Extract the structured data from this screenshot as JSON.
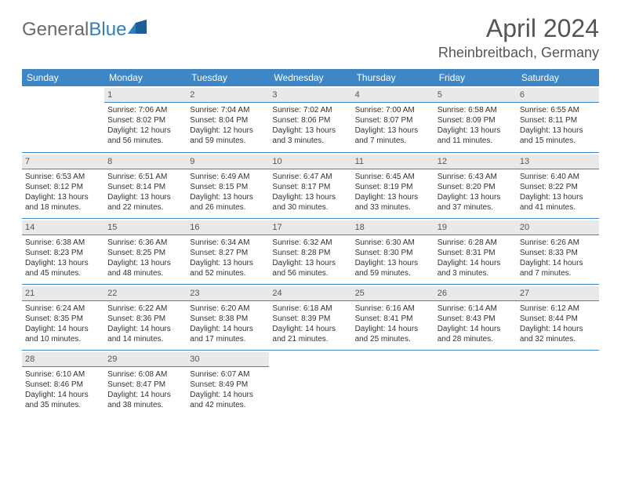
{
  "brand": {
    "part1": "General",
    "part2": "Blue"
  },
  "title": "April 2024",
  "location": "Rheinbreitbach, Germany",
  "colors": {
    "header_bg": "#3d87c7",
    "header_text": "#ffffff",
    "daynum_bg": "#e9e9e9",
    "rule": "#3d87c7",
    "text": "#333333",
    "title_text": "#555555",
    "brand_gray": "#6a6a6a",
    "brand_blue": "#2f7fc1",
    "page_bg": "#ffffff"
  },
  "weekdays": [
    "Sunday",
    "Monday",
    "Tuesday",
    "Wednesday",
    "Thursday",
    "Friday",
    "Saturday"
  ],
  "weeks": [
    [
      {
        "n": "",
        "lines": [
          "",
          "",
          "",
          ""
        ]
      },
      {
        "n": "1",
        "lines": [
          "Sunrise: 7:06 AM",
          "Sunset: 8:02 PM",
          "Daylight: 12 hours",
          "and 56 minutes."
        ]
      },
      {
        "n": "2",
        "lines": [
          "Sunrise: 7:04 AM",
          "Sunset: 8:04 PM",
          "Daylight: 12 hours",
          "and 59 minutes."
        ]
      },
      {
        "n": "3",
        "lines": [
          "Sunrise: 7:02 AM",
          "Sunset: 8:06 PM",
          "Daylight: 13 hours",
          "and 3 minutes."
        ]
      },
      {
        "n": "4",
        "lines": [
          "Sunrise: 7:00 AM",
          "Sunset: 8:07 PM",
          "Daylight: 13 hours",
          "and 7 minutes."
        ]
      },
      {
        "n": "5",
        "lines": [
          "Sunrise: 6:58 AM",
          "Sunset: 8:09 PM",
          "Daylight: 13 hours",
          "and 11 minutes."
        ]
      },
      {
        "n": "6",
        "lines": [
          "Sunrise: 6:55 AM",
          "Sunset: 8:11 PM",
          "Daylight: 13 hours",
          "and 15 minutes."
        ]
      }
    ],
    [
      {
        "n": "7",
        "lines": [
          "Sunrise: 6:53 AM",
          "Sunset: 8:12 PM",
          "Daylight: 13 hours",
          "and 18 minutes."
        ]
      },
      {
        "n": "8",
        "lines": [
          "Sunrise: 6:51 AM",
          "Sunset: 8:14 PM",
          "Daylight: 13 hours",
          "and 22 minutes."
        ]
      },
      {
        "n": "9",
        "lines": [
          "Sunrise: 6:49 AM",
          "Sunset: 8:15 PM",
          "Daylight: 13 hours",
          "and 26 minutes."
        ]
      },
      {
        "n": "10",
        "lines": [
          "Sunrise: 6:47 AM",
          "Sunset: 8:17 PM",
          "Daylight: 13 hours",
          "and 30 minutes."
        ]
      },
      {
        "n": "11",
        "lines": [
          "Sunrise: 6:45 AM",
          "Sunset: 8:19 PM",
          "Daylight: 13 hours",
          "and 33 minutes."
        ]
      },
      {
        "n": "12",
        "lines": [
          "Sunrise: 6:43 AM",
          "Sunset: 8:20 PM",
          "Daylight: 13 hours",
          "and 37 minutes."
        ]
      },
      {
        "n": "13",
        "lines": [
          "Sunrise: 6:40 AM",
          "Sunset: 8:22 PM",
          "Daylight: 13 hours",
          "and 41 minutes."
        ]
      }
    ],
    [
      {
        "n": "14",
        "lines": [
          "Sunrise: 6:38 AM",
          "Sunset: 8:23 PM",
          "Daylight: 13 hours",
          "and 45 minutes."
        ]
      },
      {
        "n": "15",
        "lines": [
          "Sunrise: 6:36 AM",
          "Sunset: 8:25 PM",
          "Daylight: 13 hours",
          "and 48 minutes."
        ]
      },
      {
        "n": "16",
        "lines": [
          "Sunrise: 6:34 AM",
          "Sunset: 8:27 PM",
          "Daylight: 13 hours",
          "and 52 minutes."
        ]
      },
      {
        "n": "17",
        "lines": [
          "Sunrise: 6:32 AM",
          "Sunset: 8:28 PM",
          "Daylight: 13 hours",
          "and 56 minutes."
        ]
      },
      {
        "n": "18",
        "lines": [
          "Sunrise: 6:30 AM",
          "Sunset: 8:30 PM",
          "Daylight: 13 hours",
          "and 59 minutes."
        ]
      },
      {
        "n": "19",
        "lines": [
          "Sunrise: 6:28 AM",
          "Sunset: 8:31 PM",
          "Daylight: 14 hours",
          "and 3 minutes."
        ]
      },
      {
        "n": "20",
        "lines": [
          "Sunrise: 6:26 AM",
          "Sunset: 8:33 PM",
          "Daylight: 14 hours",
          "and 7 minutes."
        ]
      }
    ],
    [
      {
        "n": "21",
        "lines": [
          "Sunrise: 6:24 AM",
          "Sunset: 8:35 PM",
          "Daylight: 14 hours",
          "and 10 minutes."
        ]
      },
      {
        "n": "22",
        "lines": [
          "Sunrise: 6:22 AM",
          "Sunset: 8:36 PM",
          "Daylight: 14 hours",
          "and 14 minutes."
        ]
      },
      {
        "n": "23",
        "lines": [
          "Sunrise: 6:20 AM",
          "Sunset: 8:38 PM",
          "Daylight: 14 hours",
          "and 17 minutes."
        ]
      },
      {
        "n": "24",
        "lines": [
          "Sunrise: 6:18 AM",
          "Sunset: 8:39 PM",
          "Daylight: 14 hours",
          "and 21 minutes."
        ]
      },
      {
        "n": "25",
        "lines": [
          "Sunrise: 6:16 AM",
          "Sunset: 8:41 PM",
          "Daylight: 14 hours",
          "and 25 minutes."
        ]
      },
      {
        "n": "26",
        "lines": [
          "Sunrise: 6:14 AM",
          "Sunset: 8:43 PM",
          "Daylight: 14 hours",
          "and 28 minutes."
        ]
      },
      {
        "n": "27",
        "lines": [
          "Sunrise: 6:12 AM",
          "Sunset: 8:44 PM",
          "Daylight: 14 hours",
          "and 32 minutes."
        ]
      }
    ],
    [
      {
        "n": "28",
        "lines": [
          "Sunrise: 6:10 AM",
          "Sunset: 8:46 PM",
          "Daylight: 14 hours",
          "and 35 minutes."
        ]
      },
      {
        "n": "29",
        "lines": [
          "Sunrise: 6:08 AM",
          "Sunset: 8:47 PM",
          "Daylight: 14 hours",
          "and 38 minutes."
        ]
      },
      {
        "n": "30",
        "lines": [
          "Sunrise: 6:07 AM",
          "Sunset: 8:49 PM",
          "Daylight: 14 hours",
          "and 42 minutes."
        ]
      },
      {
        "n": "",
        "lines": [
          "",
          "",
          "",
          ""
        ]
      },
      {
        "n": "",
        "lines": [
          "",
          "",
          "",
          ""
        ]
      },
      {
        "n": "",
        "lines": [
          "",
          "",
          "",
          ""
        ]
      },
      {
        "n": "",
        "lines": [
          "",
          "",
          "",
          ""
        ]
      }
    ]
  ]
}
